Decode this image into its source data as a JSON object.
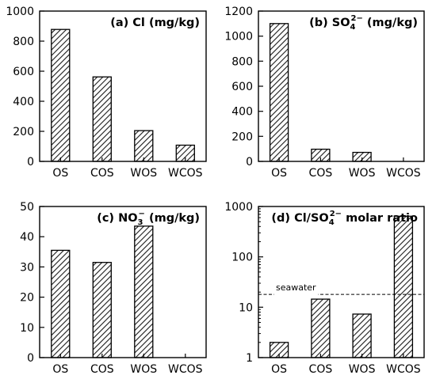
{
  "chart_data": [
    {
      "type": "bar",
      "title": {
        "prefix": "(a) Cl",
        "sup": "",
        "sub": "",
        "suffix": " (mg/kg)"
      },
      "categories": [
        "OS",
        "COS",
        "WOS",
        "WCOS"
      ],
      "values": [
        878,
        562,
        205,
        108
      ],
      "ylim": [
        0,
        1000
      ],
      "yticks": [
        0,
        200,
        400,
        600,
        800,
        1000
      ],
      "yscale": "linear",
      "pattern": "diagonal-hatch"
    },
    {
      "type": "bar",
      "title": {
        "prefix": "(b) SO",
        "sub": "4",
        "sup": "2−",
        "suffix": " (mg/kg)"
      },
      "categories": [
        "OS",
        "COS",
        "WOS",
        "WCOS"
      ],
      "values": [
        1100,
        97,
        72,
        0
      ],
      "ylim": [
        0,
        1200
      ],
      "yticks": [
        0,
        200,
        400,
        600,
        800,
        1000,
        1200
      ],
      "yscale": "linear",
      "pattern": "diagonal-hatch"
    },
    {
      "type": "bar",
      "title": {
        "prefix": "(c) NO",
        "sub": "3",
        "sup": "−",
        "suffix": " (mg/kg)"
      },
      "categories": [
        "OS",
        "COS",
        "WOS",
        "WCOS"
      ],
      "values": [
        35.5,
        31.5,
        43.5,
        0
      ],
      "ylim": [
        0,
        50
      ],
      "yticks": [
        0,
        10,
        20,
        30,
        40,
        50
      ],
      "yscale": "linear",
      "pattern": "diagonal-hatch"
    },
    {
      "type": "bar",
      "title": {
        "prefix": "(d) Cl/SO",
        "sub": "4",
        "sup": "2−",
        "suffix": " molar ratio"
      },
      "categories": [
        "OS",
        "COS",
        "WOS",
        "WCOS"
      ],
      "values": [
        2.0,
        14.5,
        7.3,
        640
      ],
      "ylim": [
        1,
        1000
      ],
      "yticks": [
        1,
        10,
        100,
        1000
      ],
      "yscale": "log",
      "pattern": "diagonal-hatch",
      "reference_line": {
        "label": "seawater",
        "value": 18,
        "style": "dashed"
      }
    }
  ]
}
